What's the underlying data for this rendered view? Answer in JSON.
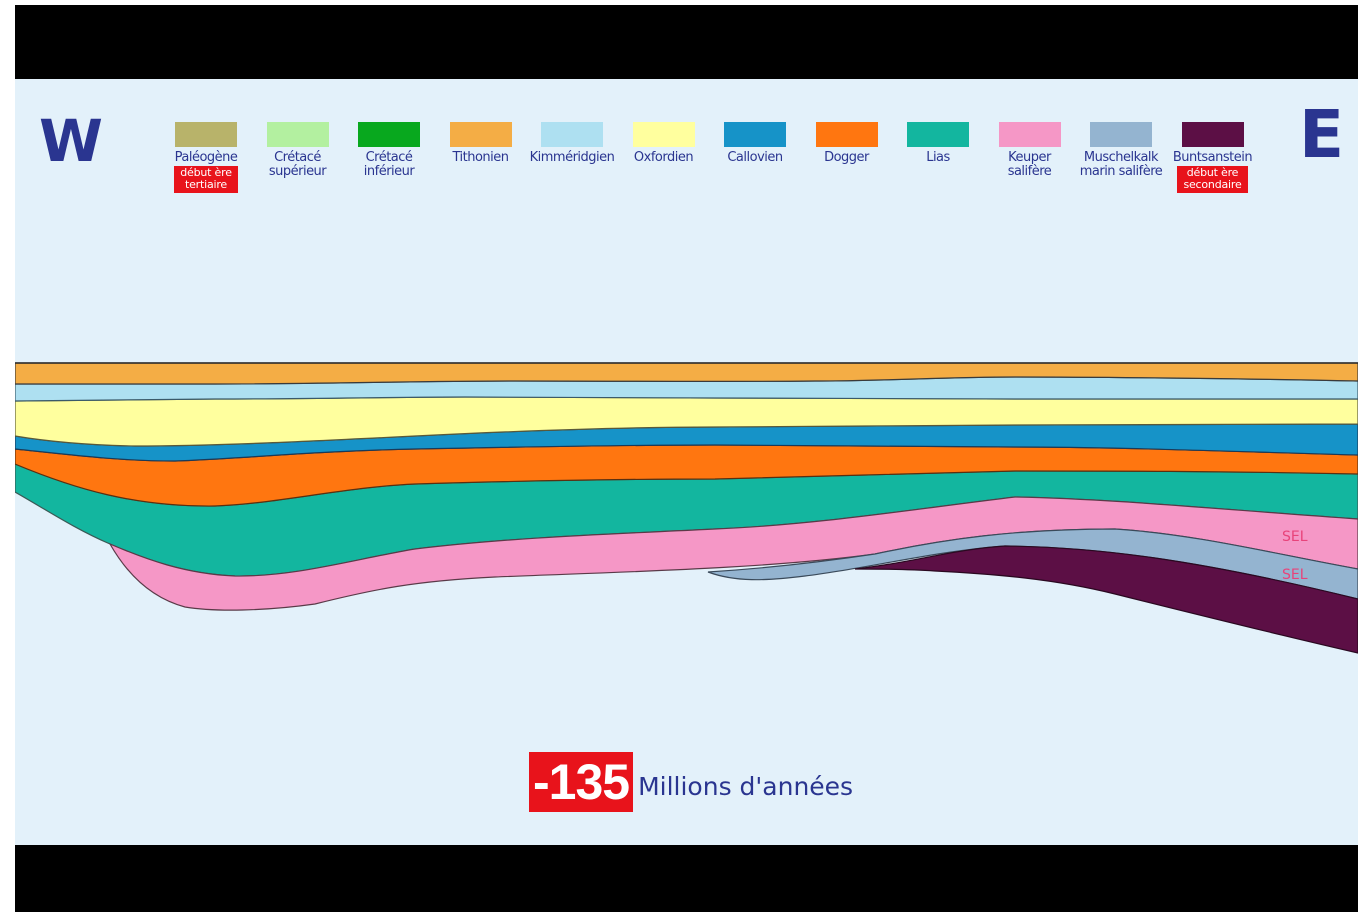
{
  "compass": {
    "west": "W",
    "east": "E"
  },
  "legend": [
    {
      "label": "Paléogène",
      "color": "#b8b36a",
      "badge": "début ère\ntertiaire"
    },
    {
      "label": "Crétacé\nsupérieur",
      "color": "#b3f0a0"
    },
    {
      "label": "Crétacé\ninférieur",
      "color": "#08a81e"
    },
    {
      "label": "Tithonien",
      "color": "#f4ad45"
    },
    {
      "label": "Kimméridgien",
      "color": "#aee0f1"
    },
    {
      "label": "Oxfordien",
      "color": "#ffff9e"
    },
    {
      "label": "Callovien",
      "color": "#1693c8"
    },
    {
      "label": "Dogger",
      "color": "#ff7610"
    },
    {
      "label": "Lias",
      "color": "#13b69f"
    },
    {
      "label": "Keuper\nsalifère",
      "color": "#f597c6"
    },
    {
      "label": "Muschelkalk\nmarin salifère",
      "color": "#94b4d0"
    },
    {
      "label": "Buntsanstein",
      "color": "#5c0f45",
      "badge": "début ère\nsecondaire"
    }
  ],
  "section": {
    "sel_labels": [
      "SEL",
      "SEL"
    ]
  },
  "age": {
    "value": "-135",
    "unit": "Millions d'années"
  }
}
